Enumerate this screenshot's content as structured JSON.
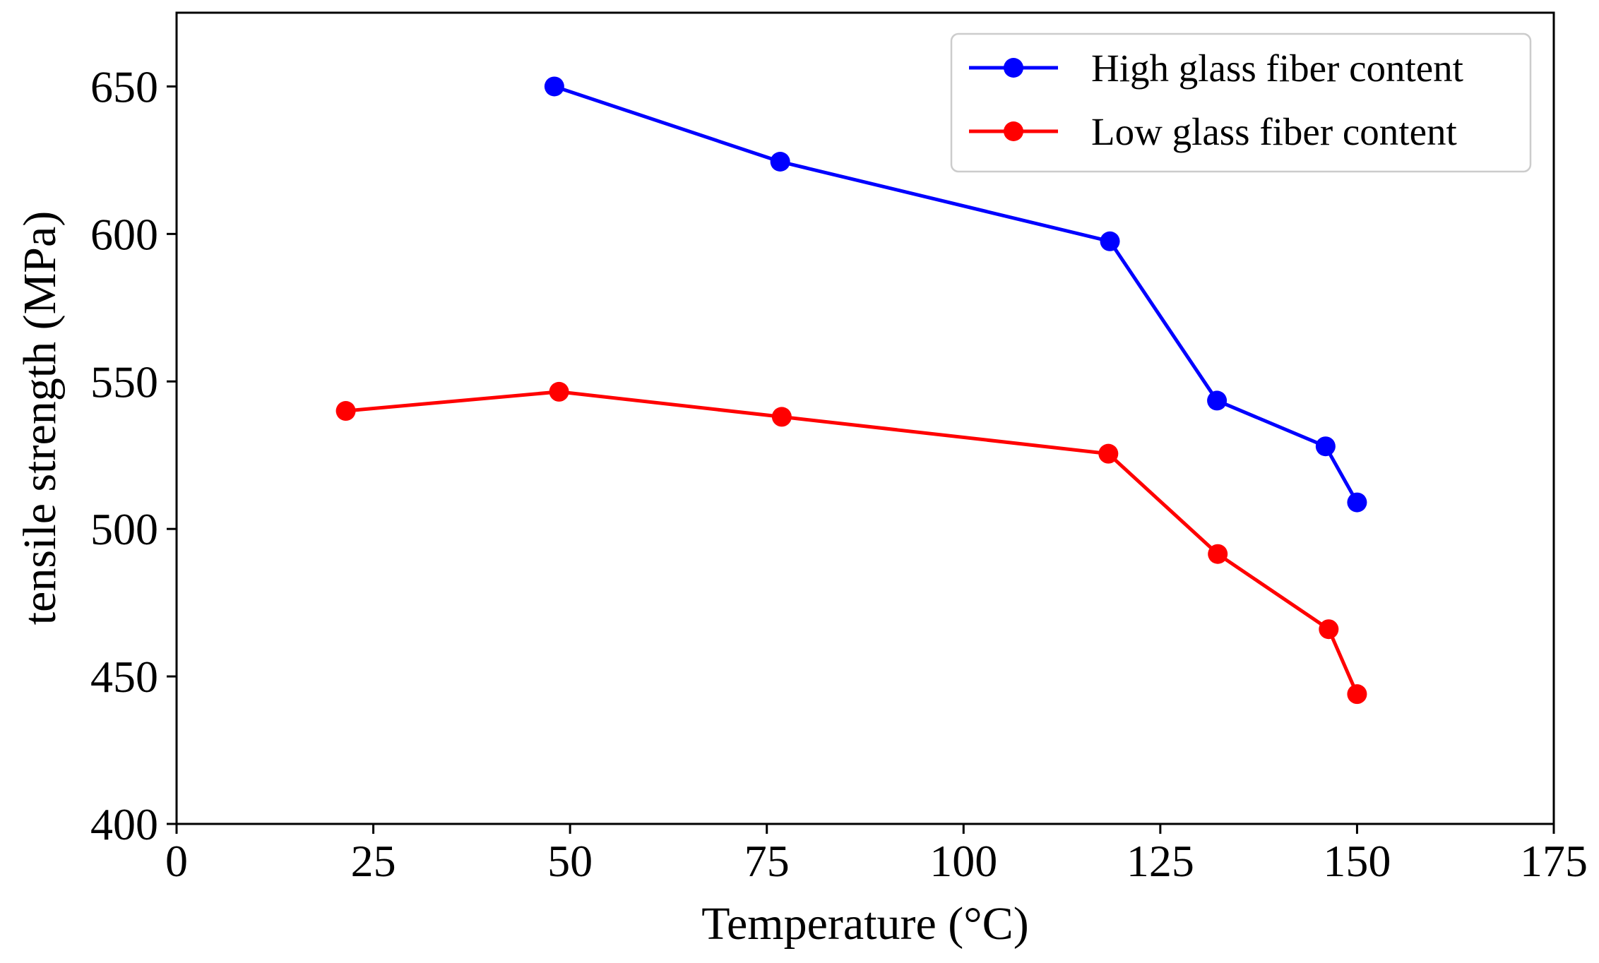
{
  "chart_data": {
    "type": "line",
    "title": "",
    "xlabel": "Temperature (°C)",
    "ylabel": "tensile strength (MPa)",
    "xlim": [
      0,
      175
    ],
    "ylim": [
      400,
      675
    ],
    "xticks": [
      0,
      25,
      50,
      75,
      100,
      125,
      150,
      175
    ],
    "yticks": [
      400,
      450,
      500,
      550,
      600,
      650
    ],
    "grid": false,
    "legend_position": "top-right",
    "series": [
      {
        "name": "High glass fiber content",
        "color": "#0000ff",
        "marker": "circle",
        "x": [
          48,
          76.7,
          118.6,
          132.2,
          146,
          150
        ],
        "y": [
          650,
          624.5,
          597.5,
          543.5,
          528,
          509
        ]
      },
      {
        "name": "Low glass fiber content",
        "color": "#ff0000",
        "marker": "circle",
        "x": [
          21.5,
          48.6,
          76.9,
          118.4,
          132.3,
          146.4,
          150
        ],
        "y": [
          540,
          546.5,
          538,
          525.5,
          491.5,
          466,
          444
        ]
      }
    ]
  }
}
